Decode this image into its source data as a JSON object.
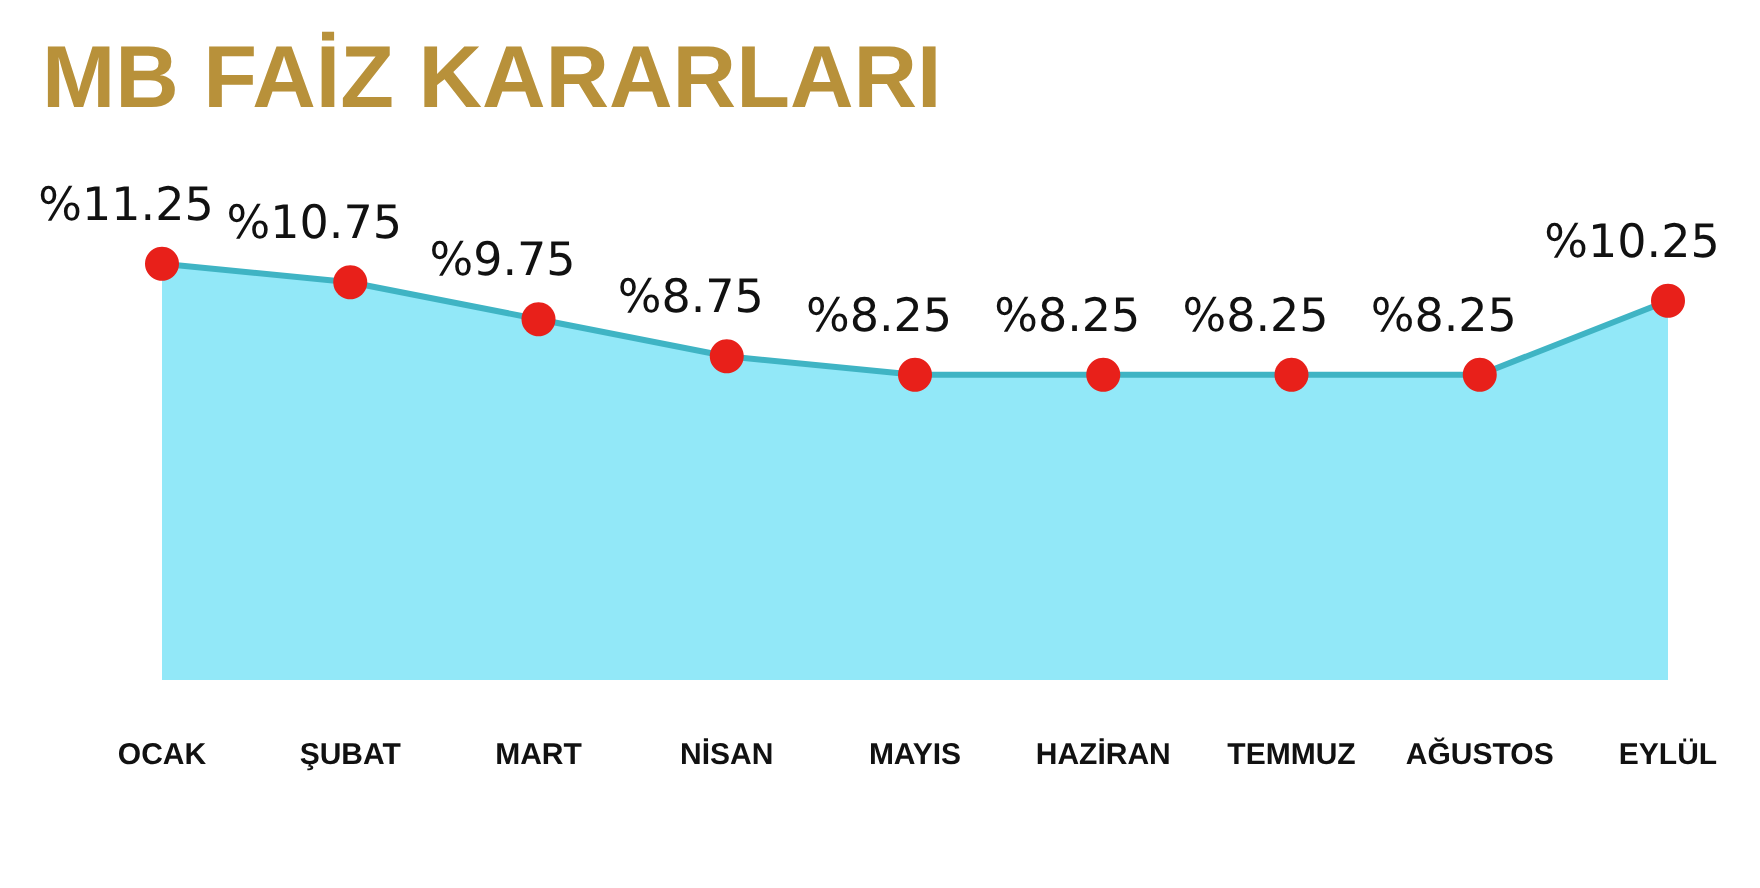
{
  "chart_data": {
    "type": "area",
    "title": "MB FAİZ KARARLARI",
    "categories": [
      "OCAK",
      "ŞUBAT",
      "MART",
      "NİSAN",
      "MAYIS",
      "HAZİRAN",
      "TEMMUZ",
      "AĞUSTOS",
      "EYLÜL"
    ],
    "series": [
      {
        "color": "#3fb4c4",
        "values": [
          11.25,
          10.75,
          9.75,
          8.75,
          8.25,
          8.25,
          8.25,
          8.25,
          10.25
        ],
        "value_labels": [
          "%11.25",
          "%10.75",
          "%9.75",
          "%8.75",
          "%8.25",
          "%8.25",
          "%8.25",
          "%8.25",
          "%10.25"
        ]
      }
    ],
    "marker": "circle",
    "grid": false
  }
}
